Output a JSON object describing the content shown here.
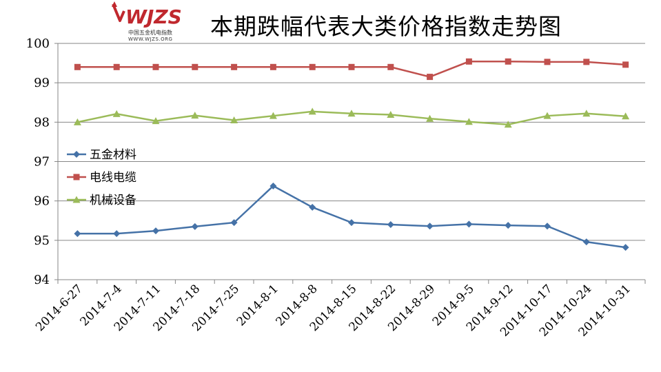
{
  "header": {
    "title": "本期跌幅代表大类价格指数走势图",
    "logo_cn": "中国五金机电指数",
    "logo_url": "WWW.WJZS.ORG",
    "logo_text": "WJZS"
  },
  "chart_data": {
    "type": "line",
    "title": "本期跌幅代表大类价格指数走势图",
    "xlabel": "",
    "ylabel": "",
    "ylim": [
      94,
      100
    ],
    "yticks": [
      94,
      95,
      96,
      97,
      98,
      99,
      100
    ],
    "grid": true,
    "legend_position": "left-middle",
    "categories": [
      "2014-6-27",
      "2014-7-4",
      "2014-7-11",
      "2014-7-18",
      "2014-7-25",
      "2014-8-1",
      "2014-8-8",
      "2014-8-15",
      "2014-8-22",
      "2014-8-29",
      "2014-9-5",
      "2014-9-12",
      "2014-10-17",
      "2014-10-24",
      "2014-10-31"
    ],
    "series": [
      {
        "name": "五金材料",
        "color": "#4572A7",
        "marker": "diamond",
        "values": [
          95.17,
          95.17,
          95.24,
          95.35,
          95.45,
          96.38,
          95.84,
          95.45,
          95.4,
          95.36,
          95.41,
          95.38,
          95.36,
          94.96,
          94.82
        ]
      },
      {
        "name": "电线电缆",
        "color": "#C0504D",
        "marker": "square",
        "values": [
          99.4,
          99.4,
          99.4,
          99.4,
          99.4,
          99.4,
          99.4,
          99.4,
          99.4,
          99.15,
          99.54,
          99.54,
          99.53,
          99.53,
          99.46
        ]
      },
      {
        "name": "机械设备",
        "color": "#9BBB59",
        "marker": "triangle",
        "values": [
          98.0,
          98.21,
          98.03,
          98.17,
          98.05,
          98.16,
          98.27,
          98.22,
          98.19,
          98.09,
          98.01,
          97.94,
          98.16,
          98.22,
          98.15
        ]
      }
    ]
  }
}
